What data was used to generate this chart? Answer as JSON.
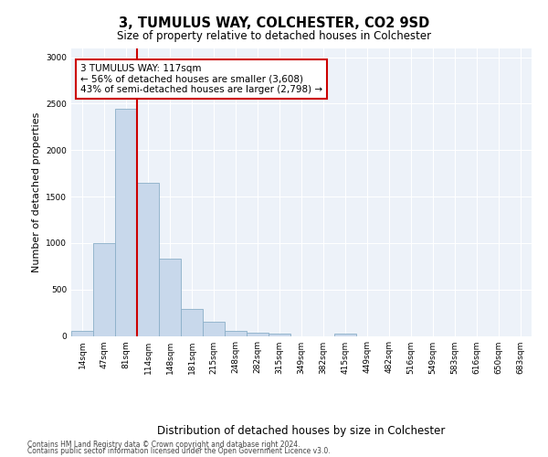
{
  "title": "3, TUMULUS WAY, COLCHESTER, CO2 9SD",
  "subtitle": "Size of property relative to detached houses in Colchester",
  "xlabel": "Distribution of detached houses by size in Colchester",
  "ylabel": "Number of detached properties",
  "bar_labels": [
    "14sqm",
    "47sqm",
    "81sqm",
    "114sqm",
    "148sqm",
    "181sqm",
    "215sqm",
    "248sqm",
    "282sqm",
    "315sqm",
    "349sqm",
    "382sqm",
    "415sqm",
    "449sqm",
    "482sqm",
    "516sqm",
    "549sqm",
    "583sqm",
    "616sqm",
    "650sqm",
    "683sqm"
  ],
  "bar_values": [
    50,
    1000,
    2450,
    1650,
    830,
    295,
    148,
    50,
    38,
    28,
    0,
    0,
    28,
    0,
    0,
    0,
    0,
    0,
    0,
    0,
    0
  ],
  "bar_color": "#c8d8eb",
  "bar_edge_color": "#8aafc8",
  "vline_color": "#cc0000",
  "annotation_text": "3 TUMULUS WAY: 117sqm\n← 56% of detached houses are smaller (3,608)\n43% of semi-detached houses are larger (2,798) →",
  "annotation_box_color": "white",
  "annotation_box_edge": "#cc0000",
  "ylim": [
    0,
    3100
  ],
  "yticks": [
    0,
    500,
    1000,
    1500,
    2000,
    2500,
    3000
  ],
  "footer_line1": "Contains HM Land Registry data © Crown copyright and database right 2024.",
  "footer_line2": "Contains public sector information licensed under the Open Government Licence v3.0.",
  "bg_color": "#edf2f9",
  "fig_bg_color": "#ffffff",
  "title_fontsize": 10.5,
  "subtitle_fontsize": 8.5,
  "ylabel_fontsize": 8,
  "xlabel_fontsize": 8.5,
  "tick_fontsize": 6.5,
  "annotation_fontsize": 7.5,
  "footer_fontsize": 5.5
}
